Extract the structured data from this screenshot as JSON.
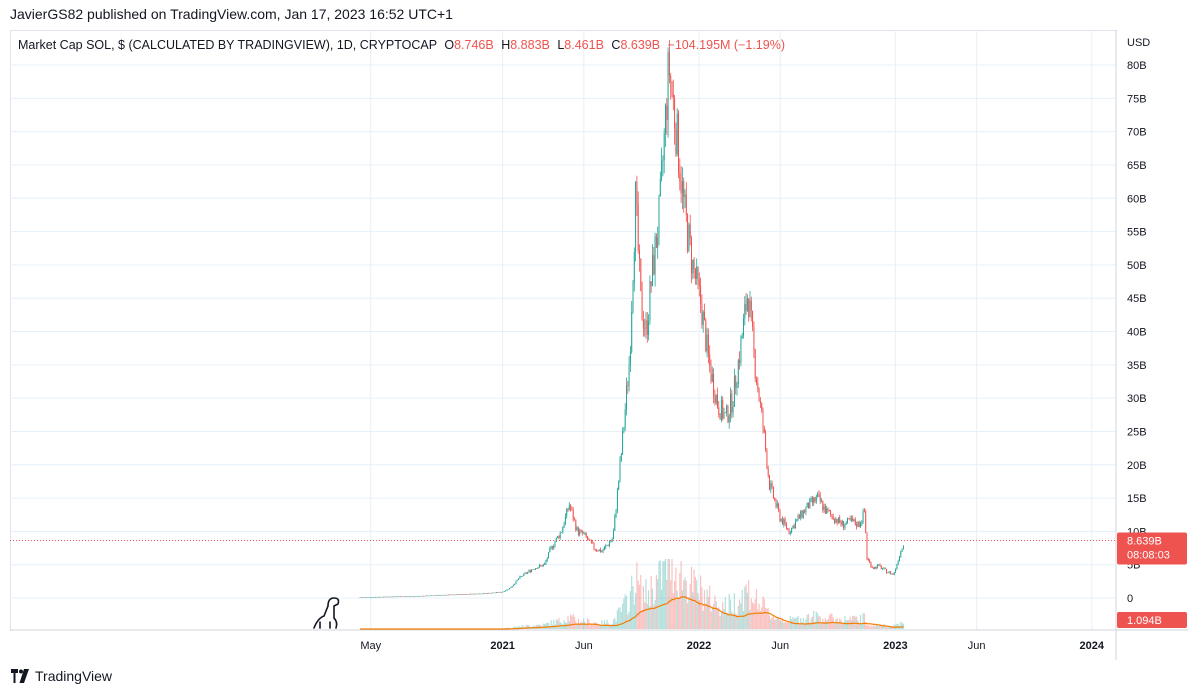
{
  "header": {
    "publish_line": "JavierGS82 published on TradingView.com, Jan 17, 2023 16:52 UTC+1"
  },
  "legend": {
    "title": "Market Cap SOL, $ (CALCULATED BY TRADINGVIEW), 1D, CRYPTOCAP",
    "o_label": "O",
    "o_value": "8.746B",
    "h_label": "H",
    "h_value": "8.883B",
    "l_label": "L",
    "l_value": "8.461B",
    "c_label": "C",
    "c_value": "8.639B",
    "change": "−104.195M (−1.19%)"
  },
  "footer": {
    "brand": "TradingView"
  },
  "colors": {
    "up": "#26a69a",
    "down": "#ef5350",
    "volume_ma": "#f57c00",
    "grid": "#e6f0f7"
  },
  "chart_data": {
    "type": "line",
    "ylabel": "USD",
    "y_ticks": [
      "0",
      "5B",
      "10B",
      "15B",
      "20B",
      "25B",
      "30B",
      "35B",
      "40B",
      "45B",
      "50B",
      "55B",
      "60B",
      "65B",
      "70B",
      "75B",
      "80B"
    ],
    "ylim": [
      0,
      80
    ],
    "y_units": "billion USD",
    "x_ticks": [
      {
        "label": "May",
        "bold": false
      },
      {
        "label": "2021",
        "bold": true
      },
      {
        "label": "Jun",
        "bold": false
      },
      {
        "label": "2022",
        "bold": true
      },
      {
        "label": "Jun",
        "bold": false
      },
      {
        "label": "2023",
        "bold": true
      },
      {
        "label": "Jun",
        "bold": false
      },
      {
        "label": "2024",
        "bold": true
      }
    ],
    "series": [
      {
        "x": [
          "2020-04-11",
          "2020-06-01",
          "2020-08-01",
          "2020-10-01",
          "2020-12-01",
          "2020-12-31",
          "2021-01-15",
          "2021-02-01",
          "2021-02-15",
          "2021-03-01",
          "2021-03-20",
          "2021-04-01",
          "2021-04-20",
          "2021-05-05",
          "2021-05-20",
          "2021-06-01",
          "2021-06-20",
          "2021-07-05",
          "2021-07-25",
          "2021-08-10",
          "2021-08-25",
          "2021-09-05",
          "2021-09-15",
          "2021-09-25",
          "2021-10-05",
          "2021-10-20",
          "2021-11-06",
          "2021-11-20",
          "2021-12-05",
          "2021-12-20",
          "2022-01-05",
          "2022-01-20",
          "2022-02-05",
          "2022-02-20",
          "2022-03-05",
          "2022-03-20",
          "2022-04-02",
          "2022-04-15",
          "2022-05-01",
          "2022-05-12",
          "2022-06-01",
          "2022-06-18",
          "2022-07-05",
          "2022-07-25",
          "2022-08-10",
          "2022-08-25",
          "2022-09-10",
          "2022-09-25",
          "2022-10-10",
          "2022-10-25",
          "2022-11-05",
          "2022-11-09",
          "2022-11-20",
          "2022-12-01",
          "2022-12-15",
          "2022-12-29",
          "2023-01-05",
          "2023-01-17"
        ],
        "values": [
          0.1,
          0.2,
          0.3,
          0.5,
          0.7,
          0.9,
          1.5,
          3.0,
          3.8,
          4.5,
          5.0,
          7.5,
          10.0,
          14.0,
          10.0,
          9.5,
          7.5,
          7.0,
          9.0,
          22.0,
          36.0,
          60.0,
          44.0,
          40.0,
          48.0,
          58.0,
          80.0,
          70.0,
          58.0,
          50.0,
          44.0,
          35.0,
          29.0,
          27.0,
          30.0,
          38.0,
          46.0,
          35.0,
          25.0,
          17.0,
          12.0,
          10.0,
          12.0,
          14.0,
          15.0,
          13.0,
          12.0,
          11.0,
          11.5,
          11.0,
          13.0,
          6.0,
          4.5,
          4.8,
          4.0,
          3.5,
          5.5,
          8.639
        ]
      }
    ],
    "price_label": {
      "value": "8.639B",
      "countdown": "08:08:03"
    },
    "volume_label": "1.094B",
    "last_close": 8.639
  }
}
